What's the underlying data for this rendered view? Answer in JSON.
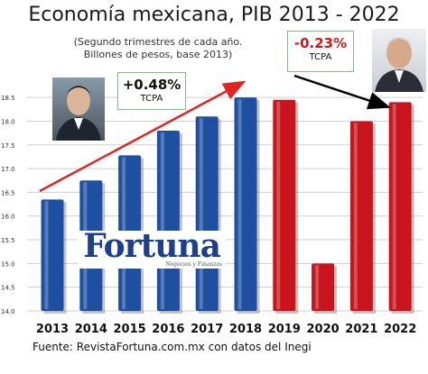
{
  "header": {
    "title": "Economía mexicana, PIB 2013 - 2022",
    "subtitle_line1": "(Segundo trimestres de cada año.",
    "subtitle_line2": "Billones de pesos, base 2013)"
  },
  "annotations": {
    "left": {
      "value": "+0.48%",
      "label": "TCPA"
    },
    "right": {
      "value": "-0.23%",
      "label": "TCPA"
    }
  },
  "brand": {
    "name": "Fortuna",
    "tagline": "Negocios y Finanzas"
  },
  "source": "Fuente: RevistaFortuna.com.mx con datos del Inegi",
  "colors": {
    "blue": "#1f4fa0",
    "red": "#c8141c",
    "arrow_red": "#e02424",
    "arrow_black": "#000000"
  },
  "icons": {
    "left_photo": "person-portrait-icon",
    "right_photo": "person-portrait-icon"
  },
  "chart_data": {
    "type": "bar",
    "categories": [
      "2013",
      "2014",
      "2015",
      "2016",
      "2017",
      "2018",
      "2019",
      "2020",
      "2021",
      "2022"
    ],
    "values": [
      16.35,
      16.75,
      17.28,
      17.8,
      18.1,
      18.5,
      18.45,
      15.0,
      18.0,
      18.4
    ],
    "bar_colors": [
      "blue",
      "blue",
      "blue",
      "blue",
      "blue",
      "blue",
      "red",
      "red",
      "red",
      "red"
    ],
    "ylim": [
      14.0,
      18.75
    ],
    "yticks": [
      "14.0",
      "14.5",
      "15.0",
      "15.5",
      "16.0",
      "16.5",
      "17.0",
      "17.5",
      "18.0",
      "18.5"
    ],
    "grid": true,
    "title": "Economía mexicana, PIB 2013 - 2022",
    "xlabel": "",
    "ylabel": ""
  }
}
